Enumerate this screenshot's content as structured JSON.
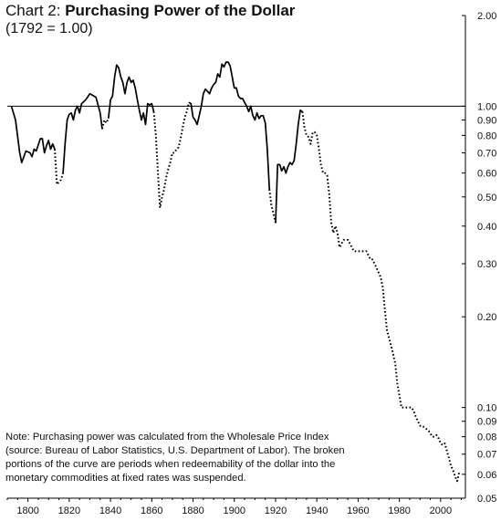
{
  "chart_data": {
    "type": "line",
    "title_prefix": "Chart 2: ",
    "title": "Purchasing Power of the Dollar",
    "subtitle": "(1792 = 1.00)",
    "note": "Note: Purchasing power was calculated from the Wholesale Price Index (source: Bureau of Labor Statistics, U.S. Department of Labor). The broken portions of the curve are periods when redeemability of the dollar into the monetary commodities at fixed rates was suspended.",
    "xlim": [
      1790,
      2012
    ],
    "ylim": [
      0.05,
      2.0
    ],
    "y_scale": "log",
    "grid": false,
    "reference_line": 1.0,
    "x_ticks": [
      1800,
      1820,
      1840,
      1860,
      1880,
      1900,
      1920,
      1940,
      1960,
      1980,
      2000
    ],
    "y_ticks": [
      {
        "value": 2.0,
        "label": "2.00"
      },
      {
        "value": 1.0,
        "label": "1.00"
      },
      {
        "value": 0.9,
        "label": "0.90"
      },
      {
        "value": 0.8,
        "label": "0.80"
      },
      {
        "value": 0.7,
        "label": "0.70"
      },
      {
        "value": 0.6,
        "label": "0.60"
      },
      {
        "value": 0.5,
        "label": "0.50"
      },
      {
        "value": 0.4,
        "label": "0.40"
      },
      {
        "value": 0.3,
        "label": "0.30"
      },
      {
        "value": 0.2,
        "label": "0.20"
      },
      {
        "value": 0.1,
        "label": "0.10"
      },
      {
        "value": 0.09,
        "label": "0.09"
      },
      {
        "value": 0.08,
        "label": "0.08"
      },
      {
        "value": 0.07,
        "label": "0.07"
      },
      {
        "value": 0.06,
        "label": "0.06"
      },
      {
        "value": 0.05,
        "label": "0.05"
      }
    ],
    "segments": [
      {
        "style": "solid",
        "points": [
          [
            1792,
            1.0
          ],
          [
            1794,
            0.9
          ],
          [
            1796,
            0.7
          ],
          [
            1797,
            0.65
          ],
          [
            1799,
            0.71
          ],
          [
            1801,
            0.7
          ],
          [
            1802,
            0.68
          ],
          [
            1803,
            0.72
          ],
          [
            1804,
            0.71
          ],
          [
            1806,
            0.78
          ],
          [
            1807,
            0.78
          ],
          [
            1808,
            0.7
          ],
          [
            1809,
            0.74
          ],
          [
            1810,
            0.77
          ],
          [
            1811,
            0.72
          ],
          [
            1812,
            0.75
          ],
          [
            1813,
            0.72
          ]
        ]
      },
      {
        "style": "dotted",
        "points": [
          [
            1813,
            0.72
          ],
          [
            1814,
            0.55
          ],
          [
            1816,
            0.57
          ],
          [
            1817,
            0.6
          ]
        ]
      },
      {
        "style": "solid",
        "points": [
          [
            1817,
            0.6
          ],
          [
            1818,
            0.75
          ],
          [
            1819,
            0.9
          ],
          [
            1820,
            0.94
          ],
          [
            1821,
            0.95
          ],
          [
            1822,
            0.9
          ],
          [
            1823,
            0.97
          ],
          [
            1824,
            1.0
          ],
          [
            1825,
            0.95
          ],
          [
            1826,
            1.02
          ],
          [
            1828,
            1.05
          ],
          [
            1830,
            1.1
          ],
          [
            1832,
            1.08
          ],
          [
            1833,
            1.07
          ],
          [
            1835,
            0.95
          ],
          [
            1836,
            0.84
          ]
        ]
      },
      {
        "style": "dotted",
        "points": [
          [
            1836,
            0.84
          ],
          [
            1837,
            0.9
          ],
          [
            1838,
            0.88
          ],
          [
            1839,
            0.91
          ]
        ]
      },
      {
        "style": "solid",
        "points": [
          [
            1839,
            0.91
          ],
          [
            1840,
            1.05
          ],
          [
            1841,
            1.08
          ],
          [
            1842,
            1.25
          ],
          [
            1843,
            1.37
          ],
          [
            1844,
            1.34
          ],
          [
            1845,
            1.25
          ],
          [
            1846,
            1.2
          ],
          [
            1847,
            1.1
          ],
          [
            1848,
            1.2
          ],
          [
            1849,
            1.25
          ],
          [
            1850,
            1.2
          ],
          [
            1851,
            1.22
          ],
          [
            1852,
            1.15
          ],
          [
            1853,
            1.05
          ],
          [
            1854,
            0.97
          ],
          [
            1855,
            0.9
          ],
          [
            1856,
            0.95
          ],
          [
            1857,
            0.87
          ],
          [
            1858,
            1.02
          ],
          [
            1859,
            1.01
          ],
          [
            1860,
            1.02
          ],
          [
            1861,
            0.96
          ]
        ]
      },
      {
        "style": "dotted",
        "points": [
          [
            1861,
            0.96
          ],
          [
            1862,
            0.8
          ],
          [
            1863,
            0.6
          ],
          [
            1864,
            0.46
          ],
          [
            1865,
            0.5
          ],
          [
            1866,
            0.53
          ],
          [
            1867,
            0.58
          ],
          [
            1868,
            0.62
          ],
          [
            1869,
            0.65
          ],
          [
            1870,
            0.7
          ],
          [
            1871,
            0.7
          ],
          [
            1872,
            0.72
          ],
          [
            1873,
            0.73
          ],
          [
            1874,
            0.78
          ],
          [
            1875,
            0.85
          ],
          [
            1876,
            0.92
          ],
          [
            1877,
            0.96
          ],
          [
            1878,
            1.03
          ]
        ]
      },
      {
        "style": "solid",
        "points": [
          [
            1878,
            1.03
          ],
          [
            1879,
            1.02
          ],
          [
            1880,
            0.92
          ],
          [
            1881,
            0.9
          ],
          [
            1882,
            0.87
          ],
          [
            1883,
            0.93
          ],
          [
            1884,
            1.0
          ],
          [
            1885,
            1.1
          ],
          [
            1886,
            1.14
          ],
          [
            1887,
            1.12
          ],
          [
            1888,
            1.1
          ],
          [
            1889,
            1.15
          ],
          [
            1890,
            1.18
          ],
          [
            1891,
            1.2
          ],
          [
            1892,
            1.28
          ],
          [
            1893,
            1.25
          ],
          [
            1894,
            1.38
          ],
          [
            1895,
            1.35
          ],
          [
            1896,
            1.4
          ],
          [
            1897,
            1.4
          ],
          [
            1898,
            1.36
          ],
          [
            1899,
            1.25
          ],
          [
            1900,
            1.15
          ],
          [
            1901,
            1.15
          ],
          [
            1902,
            1.08
          ],
          [
            1903,
            1.06
          ],
          [
            1904,
            1.06
          ],
          [
            1905,
            1.03
          ],
          [
            1906,
            1.0
          ],
          [
            1907,
            0.96
          ],
          [
            1908,
            1.0
          ],
          [
            1909,
            0.93
          ],
          [
            1910,
            0.9
          ],
          [
            1911,
            0.95
          ],
          [
            1912,
            0.91
          ],
          [
            1913,
            0.93
          ],
          [
            1914,
            0.93
          ],
          [
            1915,
            0.88
          ],
          [
            1916,
            0.72
          ],
          [
            1917,
            0.53
          ]
        ]
      },
      {
        "style": "dotted",
        "points": [
          [
            1917,
            0.53
          ],
          [
            1918,
            0.47
          ],
          [
            1919,
            0.44
          ],
          [
            1920,
            0.41
          ]
        ]
      },
      {
        "style": "solid",
        "points": [
          [
            1920,
            0.41
          ],
          [
            1921,
            0.64
          ],
          [
            1922,
            0.64
          ],
          [
            1923,
            0.61
          ],
          [
            1924,
            0.63
          ],
          [
            1925,
            0.6
          ],
          [
            1926,
            0.63
          ],
          [
            1927,
            0.65
          ],
          [
            1928,
            0.64
          ],
          [
            1929,
            0.66
          ],
          [
            1930,
            0.75
          ],
          [
            1931,
            0.87
          ],
          [
            1932,
            0.97
          ],
          [
            1933,
            0.96
          ]
        ]
      },
      {
        "style": "dotted",
        "points": [
          [
            1933,
            0.96
          ],
          [
            1934,
            0.85
          ],
          [
            1935,
            0.8
          ],
          [
            1936,
            0.79
          ],
          [
            1937,
            0.75
          ],
          [
            1938,
            0.82
          ],
          [
            1939,
            0.82
          ],
          [
            1940,
            0.8
          ],
          [
            1941,
            0.72
          ],
          [
            1942,
            0.64
          ],
          [
            1943,
            0.6
          ],
          [
            1944,
            0.6
          ],
          [
            1945,
            0.59
          ],
          [
            1946,
            0.51
          ],
          [
            1947,
            0.41
          ],
          [
            1948,
            0.38
          ],
          [
            1949,
            0.4
          ],
          [
            1950,
            0.38
          ],
          [
            1951,
            0.34
          ],
          [
            1952,
            0.35
          ],
          [
            1953,
            0.36
          ],
          [
            1954,
            0.36
          ],
          [
            1955,
            0.36
          ],
          [
            1956,
            0.35
          ],
          [
            1957,
            0.34
          ],
          [
            1958,
            0.33
          ],
          [
            1959,
            0.33
          ],
          [
            1960,
            0.33
          ],
          [
            1961,
            0.33
          ],
          [
            1962,
            0.33
          ],
          [
            1963,
            0.33
          ],
          [
            1964,
            0.33
          ],
          [
            1965,
            0.32
          ],
          [
            1966,
            0.31
          ],
          [
            1967,
            0.31
          ],
          [
            1968,
            0.3
          ],
          [
            1969,
            0.29
          ],
          [
            1970,
            0.28
          ],
          [
            1971,
            0.27
          ],
          [
            1972,
            0.25
          ],
          [
            1973,
            0.21
          ],
          [
            1974,
            0.18
          ],
          [
            1975,
            0.17
          ],
          [
            1976,
            0.16
          ],
          [
            1977,
            0.15
          ],
          [
            1978,
            0.14
          ],
          [
            1979,
            0.12
          ],
          [
            1980,
            0.11
          ],
          [
            1981,
            0.1
          ],
          [
            1982,
            0.1
          ],
          [
            1983,
            0.1
          ],
          [
            1984,
            0.1
          ],
          [
            1985,
            0.1
          ],
          [
            1986,
            0.1
          ],
          [
            1987,
            0.097
          ],
          [
            1988,
            0.093
          ],
          [
            1989,
            0.09
          ],
          [
            1990,
            0.087
          ],
          [
            1991,
            0.087
          ],
          [
            1992,
            0.086
          ],
          [
            1993,
            0.085
          ],
          [
            1994,
            0.084
          ],
          [
            1995,
            0.082
          ],
          [
            1996,
            0.08
          ],
          [
            1997,
            0.08
          ],
          [
            1998,
            0.081
          ],
          [
            1999,
            0.079
          ],
          [
            2000,
            0.076
          ],
          [
            2001,
            0.075
          ],
          [
            2002,
            0.076
          ],
          [
            2003,
            0.072
          ],
          [
            2004,
            0.068
          ],
          [
            2005,
            0.064
          ],
          [
            2006,
            0.062
          ],
          [
            2007,
            0.059
          ],
          [
            2008,
            0.057
          ],
          [
            2009,
            0.061
          ]
        ]
      }
    ]
  }
}
